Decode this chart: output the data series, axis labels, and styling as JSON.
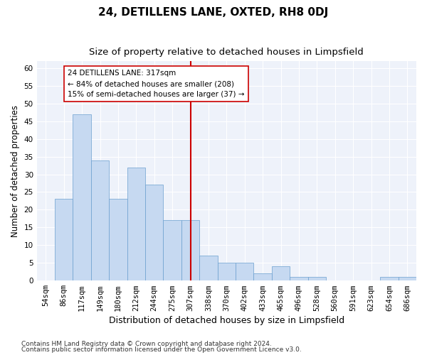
{
  "title": "24, DETILLENS LANE, OXTED, RH8 0DJ",
  "subtitle": "Size of property relative to detached houses in Limpsfield",
  "xlabel": "Distribution of detached houses by size in Limpsfield",
  "ylabel": "Number of detached properties",
  "bin_labels": [
    "54sqm",
    "86sqm",
    "117sqm",
    "149sqm",
    "180sqm",
    "212sqm",
    "244sqm",
    "275sqm",
    "307sqm",
    "338sqm",
    "370sqm",
    "402sqm",
    "433sqm",
    "465sqm",
    "496sqm",
    "528sqm",
    "560sqm",
    "591sqm",
    "623sqm",
    "654sqm",
    "686sqm"
  ],
  "bar_values": [
    0,
    23,
    47,
    34,
    23,
    32,
    27,
    17,
    17,
    7,
    5,
    5,
    2,
    4,
    1,
    1,
    0,
    0,
    0,
    1,
    1
  ],
  "bar_color": "#c6d9f1",
  "bar_edge_color": "#6b9fcf",
  "highlight_index": 8,
  "highlight_color": "#cc0000",
  "ylim": [
    0,
    62
  ],
  "yticks": [
    0,
    5,
    10,
    15,
    20,
    25,
    30,
    35,
    40,
    45,
    50,
    55,
    60
  ],
  "annotation_box_text": "24 DETILLENS LANE: 317sqm\n← 84% of detached houses are smaller (208)\n15% of semi-detached houses are larger (37) →",
  "annotation_box_color": "#cc0000",
  "footnote1": "Contains HM Land Registry data © Crown copyright and database right 2024.",
  "footnote2": "Contains public sector information licensed under the Open Government Licence v3.0.",
  "background_color": "#eef2fa",
  "grid_color": "#ffffff",
  "fig_background": "#ffffff",
  "title_fontsize": 11,
  "subtitle_fontsize": 9.5,
  "xlabel_fontsize": 9,
  "ylabel_fontsize": 8.5,
  "tick_fontsize": 7.5,
  "annotation_fontsize": 7.5,
  "footnote_fontsize": 6.5
}
